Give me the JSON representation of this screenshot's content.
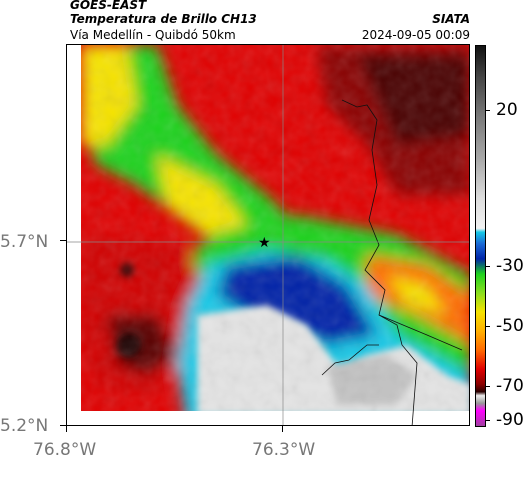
{
  "header": {
    "product": "GOES-EAST",
    "title": "Temperatura de Brillo CH13",
    "region": "Vía Medellín - Quibdó 50km",
    "organization": "SIATA",
    "timestamp": "2024-09-05 00:09"
  },
  "axes": {
    "lat_labels": [
      "5.7°N",
      "5.2°N"
    ],
    "lon_labels": [
      "76.8°W",
      "76.3°W"
    ]
  },
  "colorbar": {
    "labels": [
      "20",
      "-30",
      "-50",
      "-70",
      "-90"
    ]
  },
  "colors": {
    "warm_red": "#e00000",
    "orange": "#ff6a00",
    "yellow": "#f5e200",
    "green": "#1ed21e",
    "cyan": "#16c8e6",
    "blue": "#0024a8",
    "dark": "#2a0000",
    "gray": "#e4e4e4"
  }
}
